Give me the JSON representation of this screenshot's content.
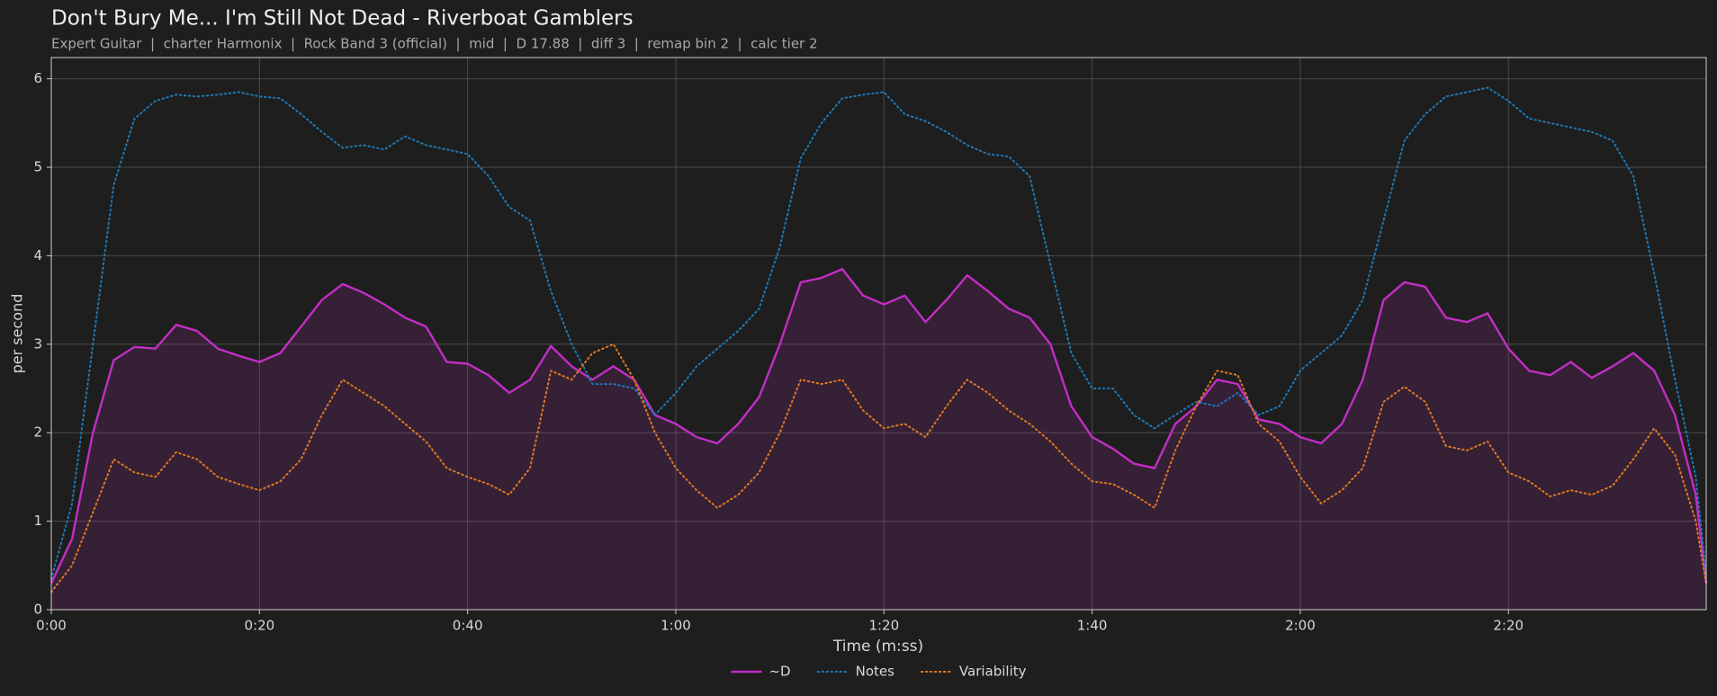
{
  "chart_data": {
    "type": "line",
    "title": "Don't Bury Me... I'm Still Not Dead - Riverboat Gamblers",
    "subtitle": "Expert Guitar  |  charter Harmonix  |  Rock Band 3 (official)  |  mid  |  D 17.88  |  diff 3  |  remap bin 2  |  calc tier 2",
    "xlabel": "Time (m:ss)",
    "ylabel": "per second",
    "x": [
      0,
      2,
      4,
      6,
      8,
      10,
      12,
      14,
      16,
      18,
      20,
      22,
      24,
      26,
      28,
      30,
      32,
      34,
      36,
      38,
      40,
      42,
      44,
      46,
      48,
      50,
      52,
      54,
      56,
      58,
      60,
      62,
      64,
      66,
      68,
      70,
      72,
      74,
      76,
      78,
      80,
      82,
      84,
      86,
      88,
      90,
      92,
      94,
      96,
      98,
      100,
      102,
      104,
      106,
      108,
      110,
      112,
      114,
      116,
      118,
      120,
      122,
      124,
      126,
      128,
      130,
      132,
      134,
      136,
      138,
      140,
      142,
      144,
      146,
      148,
      150,
      152,
      154,
      156,
      158,
      159
    ],
    "series": [
      {
        "name": "~D",
        "color": "#c22ec4",
        "linestyle": "solid",
        "fill": true,
        "values": [
          0.3,
          0.8,
          2.0,
          2.82,
          2.97,
          2.95,
          3.22,
          3.15,
          2.95,
          2.87,
          2.8,
          2.9,
          3.2,
          3.5,
          3.68,
          3.58,
          3.45,
          3.3,
          3.2,
          2.8,
          2.78,
          2.65,
          2.45,
          2.6,
          2.98,
          2.75,
          2.6,
          2.75,
          2.6,
          2.2,
          2.1,
          1.95,
          1.88,
          2.1,
          2.4,
          3.0,
          3.7,
          3.75,
          3.85,
          3.55,
          3.45,
          3.55,
          3.25,
          3.5,
          3.78,
          3.6,
          3.4,
          3.3,
          3.0,
          2.3,
          1.95,
          1.82,
          1.65,
          1.6,
          2.1,
          2.3,
          2.6,
          2.55,
          2.15,
          2.1,
          1.95,
          1.88,
          2.1,
          2.6,
          3.5,
          3.7,
          3.65,
          3.3,
          3.25,
          3.35,
          2.95,
          2.7,
          2.65,
          2.8,
          2.62,
          2.75,
          2.9,
          2.7,
          2.2,
          1.3,
          0.3
        ]
      },
      {
        "name": "Notes",
        "color": "#1f7ab8",
        "linestyle": "dotted",
        "values": [
          0.35,
          1.2,
          3.0,
          4.8,
          5.55,
          5.75,
          5.82,
          5.8,
          5.82,
          5.85,
          5.8,
          5.78,
          5.6,
          5.4,
          5.22,
          5.25,
          5.2,
          5.35,
          5.25,
          5.2,
          5.15,
          4.9,
          4.55,
          4.4,
          3.6,
          3.0,
          2.55,
          2.55,
          2.5,
          2.2,
          2.45,
          2.75,
          2.95,
          3.15,
          3.4,
          4.1,
          5.1,
          5.5,
          5.78,
          5.82,
          5.85,
          5.6,
          5.52,
          5.4,
          5.25,
          5.15,
          5.12,
          4.9,
          3.9,
          2.9,
          2.5,
          2.5,
          2.2,
          2.05,
          2.2,
          2.35,
          2.3,
          2.45,
          2.2,
          2.3,
          2.7,
          2.9,
          3.1,
          3.5,
          4.4,
          5.3,
          5.6,
          5.8,
          5.85,
          5.9,
          5.75,
          5.55,
          5.5,
          5.45,
          5.4,
          5.3,
          4.9,
          3.8,
          2.6,
          1.5,
          0.4
        ]
      },
      {
        "name": "Variability",
        "color": "#e0791f",
        "linestyle": "dotted",
        "values": [
          0.2,
          0.5,
          1.1,
          1.7,
          1.55,
          1.5,
          1.78,
          1.7,
          1.5,
          1.42,
          1.35,
          1.45,
          1.7,
          2.2,
          2.6,
          2.45,
          2.3,
          2.1,
          1.9,
          1.6,
          1.5,
          1.42,
          1.3,
          1.6,
          2.7,
          2.6,
          2.9,
          3.0,
          2.6,
          2.0,
          1.6,
          1.35,
          1.15,
          1.3,
          1.55,
          2.0,
          2.6,
          2.55,
          2.6,
          2.25,
          2.05,
          2.1,
          1.95,
          2.3,
          2.6,
          2.45,
          2.25,
          2.1,
          1.9,
          1.65,
          1.45,
          1.42,
          1.3,
          1.15,
          1.8,
          2.3,
          2.7,
          2.65,
          2.1,
          1.9,
          1.5,
          1.2,
          1.35,
          1.6,
          2.35,
          2.52,
          2.35,
          1.85,
          1.8,
          1.9,
          1.55,
          1.45,
          1.28,
          1.35,
          1.3,
          1.4,
          1.7,
          2.05,
          1.75,
          1.0,
          0.3
        ]
      }
    ],
    "xlim": [
      0,
      159
    ],
    "xticks": [
      {
        "value": 0,
        "label": "0:00"
      },
      {
        "value": 20,
        "label": "0:20"
      },
      {
        "value": 40,
        "label": "0:40"
      },
      {
        "value": 60,
        "label": "1:00"
      },
      {
        "value": 80,
        "label": "1:20"
      },
      {
        "value": 100,
        "label": "1:40"
      },
      {
        "value": 120,
        "label": "2:00"
      },
      {
        "value": 140,
        "label": "2:20"
      }
    ],
    "ylim": [
      0,
      6.24
    ],
    "yticks": [
      0,
      1,
      2,
      3,
      4,
      5,
      6
    ],
    "grid": true,
    "legend": "bottom"
  }
}
